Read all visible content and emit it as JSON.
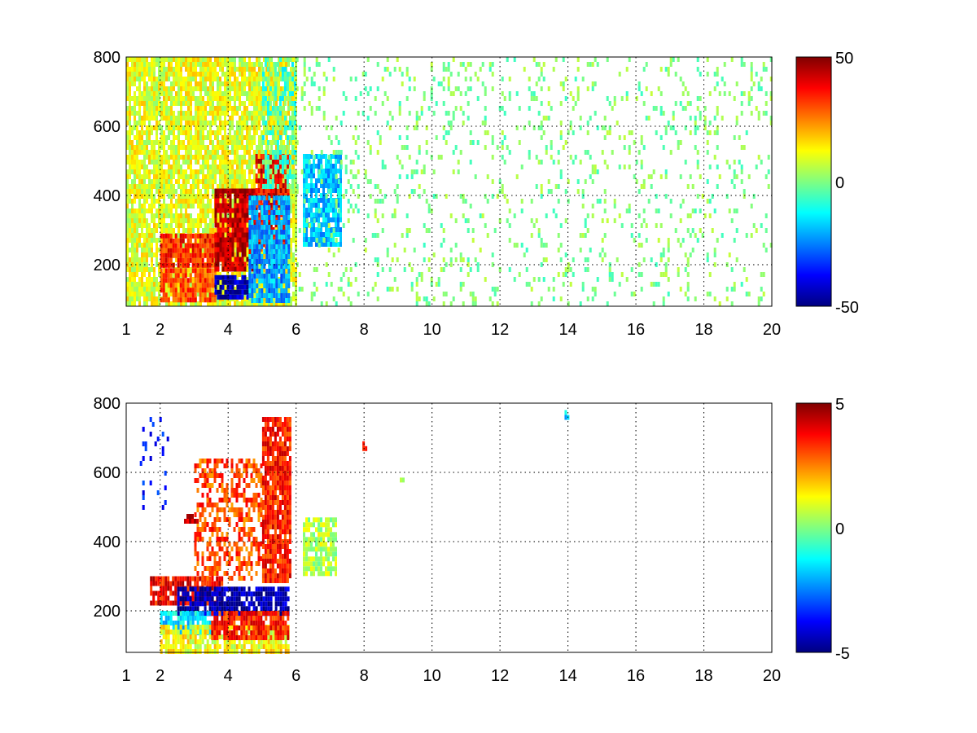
{
  "chart_data": [
    {
      "type": "heatmap",
      "title": "",
      "xlabel": "",
      "ylabel": "",
      "xlim": [
        1,
        20
      ],
      "ylim": [
        80,
        800
      ],
      "xticks": [
        1,
        2,
        4,
        6,
        8,
        10,
        12,
        14,
        16,
        18,
        20
      ],
      "yticks": [
        200,
        400,
        600,
        800
      ],
      "xgrid": [
        2,
        4,
        6,
        8,
        10,
        12,
        14,
        16,
        18,
        20
      ],
      "ygrid": [
        200,
        400,
        600,
        800
      ],
      "grid": true,
      "colormap": "jet",
      "clim": [
        -50,
        50
      ],
      "colorbar_ticks": [
        -50,
        0,
        50
      ],
      "features": [
        {
          "x": [
            1.0,
            6.0
          ],
          "y": [
            80,
            800
          ],
          "value": 10,
          "fill": "dense"
        },
        {
          "x": [
            2.0,
            3.6
          ],
          "y": [
            200,
            290
          ],
          "value": 35,
          "fill": "dense"
        },
        {
          "x": [
            2.0,
            3.6
          ],
          "y": [
            100,
            190
          ],
          "value": 30,
          "fill": "dense"
        },
        {
          "x": [
            3.6,
            4.8
          ],
          "y": [
            180,
            420
          ],
          "value": 42,
          "fill": "dense"
        },
        {
          "x": [
            4.8,
            5.8
          ],
          "y": [
            250,
            520
          ],
          "value": 38,
          "fill": "dense"
        },
        {
          "x": [
            3.6,
            4.6
          ],
          "y": [
            110,
            170
          ],
          "value": -45,
          "fill": "dense"
        },
        {
          "x": [
            4.6,
            5.8
          ],
          "y": [
            100,
            400
          ],
          "value": -22,
          "fill": "dense"
        },
        {
          "x": [
            5.0,
            6.0
          ],
          "y": [
            420,
            800
          ],
          "value": -6,
          "fill": "medium"
        },
        {
          "x": [
            6.2,
            7.3
          ],
          "y": [
            260,
            520
          ],
          "value": -18,
          "fill": "dense"
        },
        {
          "x": [
            6.0,
            20.0
          ],
          "y": [
            80,
            800
          ],
          "value": 0,
          "fill": "sparse"
        }
      ]
    },
    {
      "type": "heatmap",
      "title": "",
      "xlabel": "",
      "ylabel": "",
      "xlim": [
        1,
        20
      ],
      "ylim": [
        80,
        800
      ],
      "xticks": [
        1,
        2,
        4,
        6,
        8,
        10,
        12,
        14,
        16,
        18,
        20
      ],
      "yticks": [
        200,
        400,
        600,
        800
      ],
      "xgrid": [
        2,
        4,
        6,
        8,
        10,
        12,
        14,
        16,
        18,
        20
      ],
      "ygrid": [
        200,
        400,
        600,
        800
      ],
      "grid": true,
      "colormap": "jet",
      "clim": [
        -5,
        5
      ],
      "colorbar_ticks": [
        -5,
        0,
        5
      ],
      "features": [
        {
          "x": [
            1.7,
            3.8
          ],
          "y": [
            220,
            300
          ],
          "value": 3.8,
          "fill": "dense"
        },
        {
          "x": [
            2.5,
            5.8
          ],
          "y": [
            190,
            270
          ],
          "value": -4.5,
          "fill": "dense"
        },
        {
          "x": [
            2.0,
            3.5
          ],
          "y": [
            140,
            200
          ],
          "value": -1.5,
          "fill": "dense"
        },
        {
          "x": [
            2.0,
            5.8
          ],
          "y": [
            80,
            160
          ],
          "value": 1.2,
          "fill": "dense"
        },
        {
          "x": [
            3.5,
            5.8
          ],
          "y": [
            120,
            200
          ],
          "value": 3.5,
          "fill": "dense"
        },
        {
          "x": [
            3.0,
            5.0
          ],
          "y": [
            300,
            640
          ],
          "value": 3.0,
          "fill": "medium"
        },
        {
          "x": [
            5.0,
            5.8
          ],
          "y": [
            280,
            760
          ],
          "value": 3.5,
          "fill": "dense"
        },
        {
          "x": [
            6.2,
            7.2
          ],
          "y": [
            310,
            470
          ],
          "value": 0.5,
          "fill": "dense"
        },
        {
          "x": [
            1.4,
            2.4
          ],
          "y": [
            500,
            760
          ],
          "value": -3.5,
          "fill": "sparse"
        },
        {
          "x": [
            2.7,
            3.1
          ],
          "y": [
            455,
            480
          ],
          "value": 4.5,
          "fill": "dense"
        },
        {
          "x": [
            7.95,
            8.05
          ],
          "y": [
            670,
            690
          ],
          "value": 4.0,
          "fill": "dense"
        },
        {
          "x": [
            9.05,
            9.15
          ],
          "y": [
            575,
            585
          ],
          "value": 0.8,
          "fill": "dense"
        },
        {
          "x": [
            13.9,
            14.0
          ],
          "y": [
            760,
            780
          ],
          "value": -1.8,
          "fill": "dense"
        }
      ]
    }
  ]
}
